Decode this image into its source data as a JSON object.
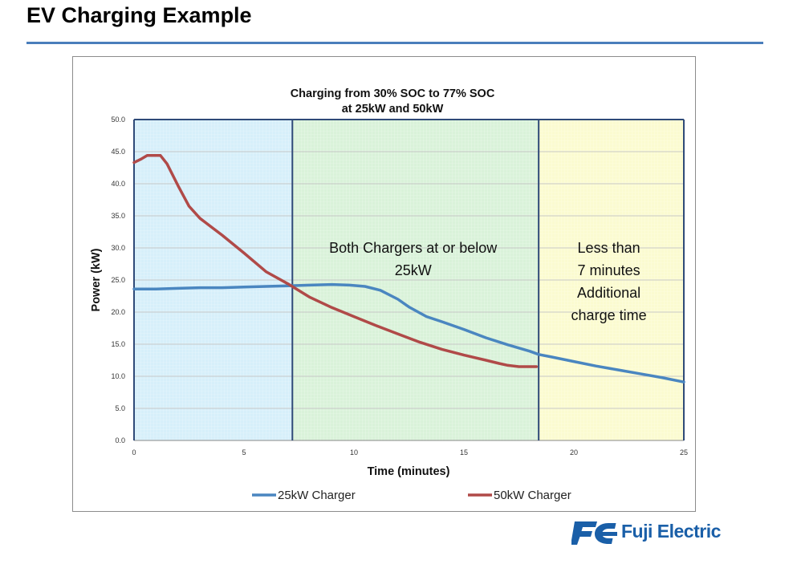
{
  "slide": {
    "title": "EV Charging Example",
    "logo_text": "Fuji Electric"
  },
  "colors": {
    "rule": "#4a7ebb",
    "series_25": "#4a86c0",
    "series_50": "#b04a48",
    "region_blue": "#d6effa",
    "region_green": "#d9f2d9",
    "region_yellow": "#fbfbd0",
    "divider": "#2f4a78"
  },
  "chart_data": {
    "type": "line",
    "title": [
      "Charging from 30% SOC to 77% SOC",
      "at 25kW and 50kW"
    ],
    "xlabel": "Time (minutes)",
    "ylabel": "Power (kW)",
    "xlim": [
      0,
      25
    ],
    "ylim": [
      0,
      50
    ],
    "xticks": [
      "0",
      "5",
      "10",
      "15",
      "20",
      "25"
    ],
    "yticks": [
      "0.0",
      "5.0",
      "10.0",
      "15.0",
      "20.0",
      "25.0",
      "30.0",
      "35.0",
      "40.0",
      "45.0",
      "50.0"
    ],
    "grid": true,
    "legend_position": "bottom",
    "regions": [
      {
        "x0": 0,
        "x1": 7.2,
        "color": "blue",
        "label": []
      },
      {
        "x0": 7.2,
        "x1": 18.4,
        "color": "green",
        "label": [
          "Both Chargers at or below",
          "25kW"
        ]
      },
      {
        "x0": 18.4,
        "x1": 25,
        "color": "yellow",
        "label": [
          "Less than",
          "7 minutes",
          "Additional",
          "charge time"
        ]
      }
    ],
    "series": [
      {
        "name": "25kW Charger",
        "points": [
          [
            0,
            23.6
          ],
          [
            1,
            23.6
          ],
          [
            2,
            23.7
          ],
          [
            3,
            23.8
          ],
          [
            4,
            23.8
          ],
          [
            5,
            23.9
          ],
          [
            6,
            24.0
          ],
          [
            7,
            24.1
          ],
          [
            8,
            24.2
          ],
          [
            9,
            24.3
          ],
          [
            9.8,
            24.2
          ],
          [
            10.5,
            24.0
          ],
          [
            11.2,
            23.4
          ],
          [
            12,
            22.0
          ],
          [
            12.5,
            20.8
          ],
          [
            13.3,
            19.3
          ],
          [
            14,
            18.5
          ],
          [
            15,
            17.3
          ],
          [
            16,
            16.0
          ],
          [
            17,
            14.9
          ],
          [
            18,
            13.9
          ],
          [
            18.4,
            13.4
          ],
          [
            19,
            13.0
          ],
          [
            20,
            12.3
          ],
          [
            21,
            11.6
          ],
          [
            22,
            11.0
          ],
          [
            23,
            10.4
          ],
          [
            24,
            9.8
          ],
          [
            25,
            9.1
          ]
        ]
      },
      {
        "name": "50kW Charger",
        "points": [
          [
            0,
            43.3
          ],
          [
            0.3,
            43.8
          ],
          [
            0.6,
            44.4
          ],
          [
            1.2,
            44.4
          ],
          [
            1.5,
            43.1
          ],
          [
            2,
            39.7
          ],
          [
            2.5,
            36.5
          ],
          [
            3,
            34.6
          ],
          [
            3.5,
            33.3
          ],
          [
            4,
            32.0
          ],
          [
            5,
            29.2
          ],
          [
            6,
            26.3
          ],
          [
            7,
            24.4
          ],
          [
            8,
            22.3
          ],
          [
            9,
            20.7
          ],
          [
            10,
            19.3
          ],
          [
            11,
            17.9
          ],
          [
            12,
            16.6
          ],
          [
            13,
            15.3
          ],
          [
            14,
            14.2
          ],
          [
            15,
            13.3
          ],
          [
            16,
            12.5
          ],
          [
            16.6,
            12.0
          ],
          [
            17,
            11.7
          ],
          [
            17.5,
            11.5
          ],
          [
            18,
            11.5
          ],
          [
            18.3,
            11.5
          ]
        ]
      }
    ]
  }
}
